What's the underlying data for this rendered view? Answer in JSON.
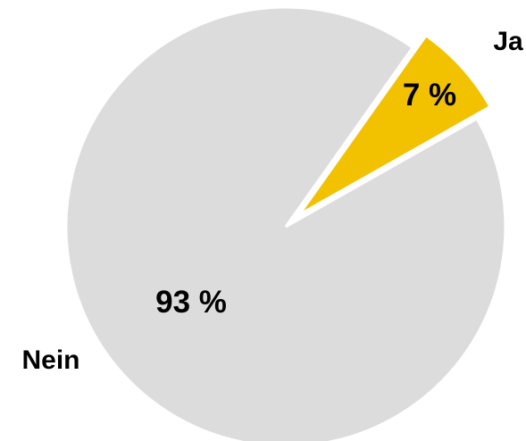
{
  "chart_data": {
    "type": "pie",
    "slices": [
      {
        "label": "Ja",
        "value": 7,
        "value_label": "7 %",
        "color": "#f2c100",
        "exploded": true
      },
      {
        "label": "Nein",
        "value": 93,
        "value_label": "93 %",
        "color": "#dcdcdc",
        "exploded": false
      }
    ],
    "title": "",
    "legend": "none"
  }
}
